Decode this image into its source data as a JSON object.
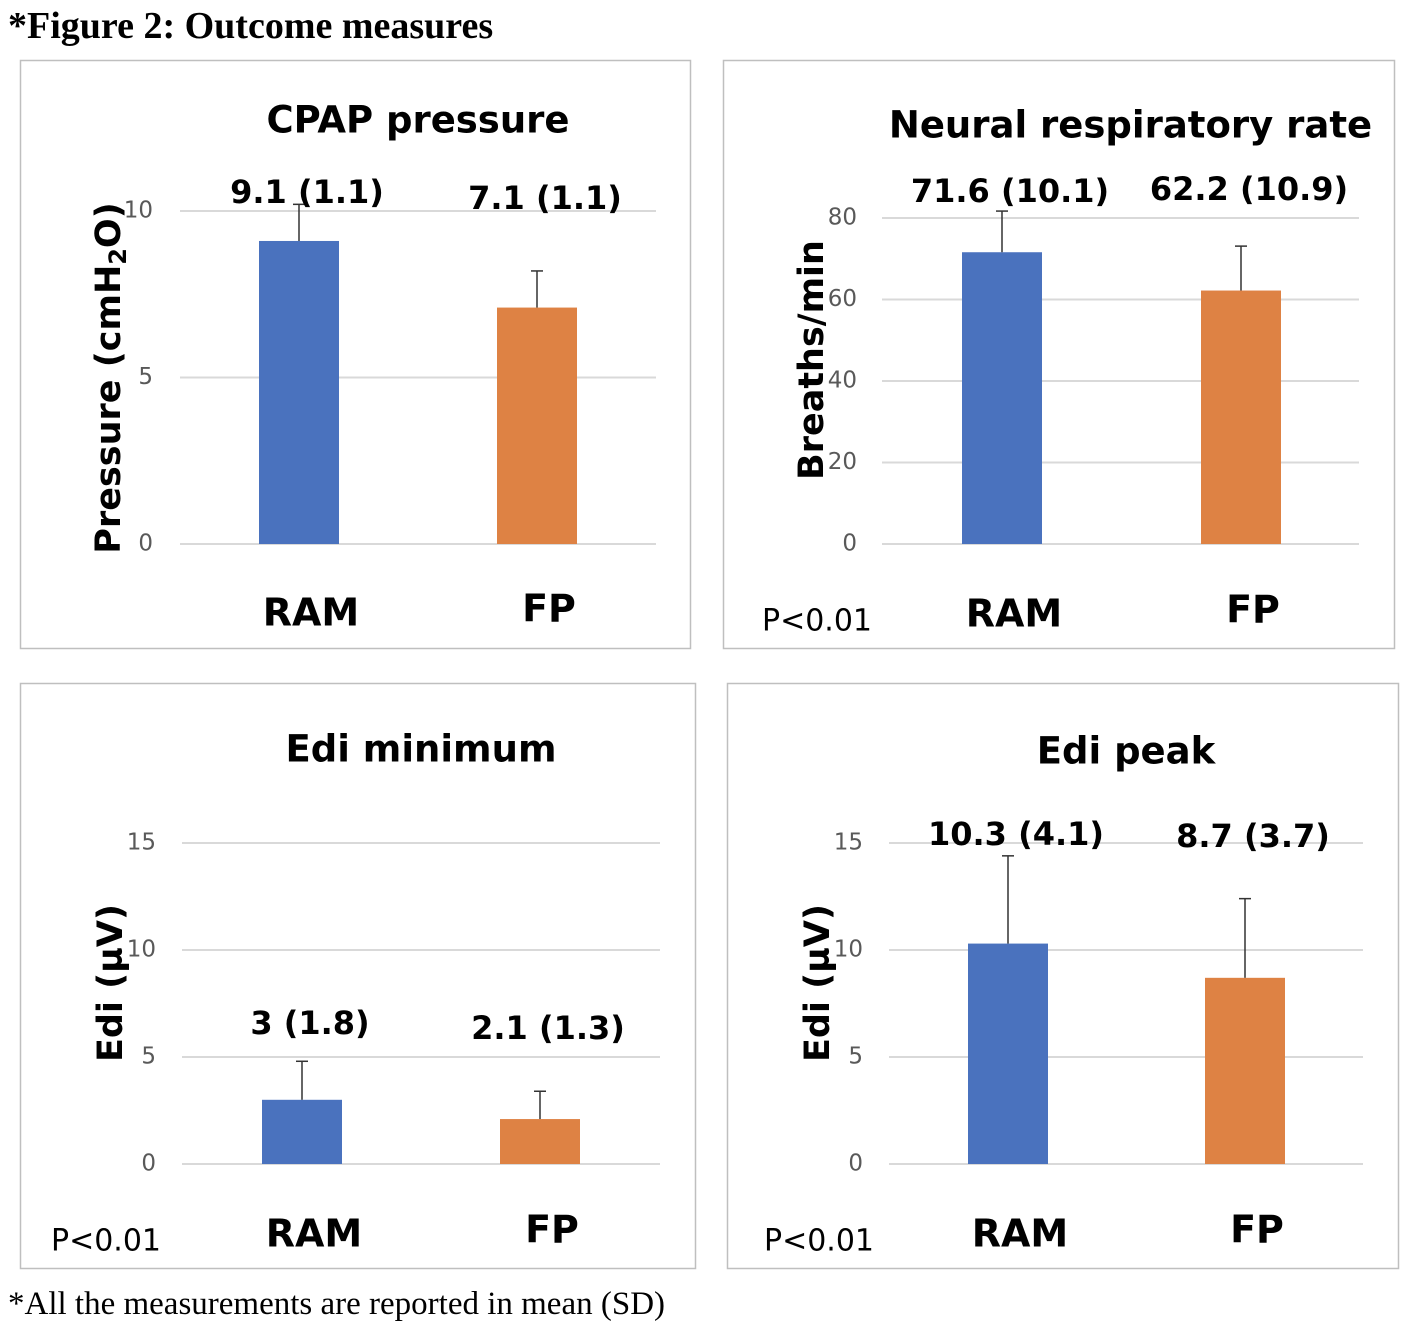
{
  "figure": {
    "title": "*Figure 2: Outcome measures",
    "footnote": "*All the measurements are reported in mean (SD)"
  },
  "colors": {
    "ram": "#4A72BE",
    "fp": "#DE8244",
    "grid": "#D9D9D9",
    "axis_text": "#595959",
    "border": "#BFBFBF"
  },
  "chart_data": [
    {
      "type": "bar",
      "title": "CPAP pressure",
      "ylabel": "Pressure (cmH2O)",
      "ylabel_parts": [
        "Pressure (cmH",
        "2",
        "O)"
      ],
      "categories": [
        "RAM",
        "FP"
      ],
      "values": [
        9.1,
        7.1
      ],
      "errors": [
        1.1,
        1.1
      ],
      "data_labels": [
        "9.1 (1.1)",
        "7.1 (1.1)"
      ],
      "ylim": [
        0,
        10
      ],
      "yticks": [
        0,
        5,
        10
      ],
      "pvalue": "",
      "grid": true
    },
    {
      "type": "bar",
      "title": "Neural respiratory rate",
      "ylabel": "Breaths/min",
      "categories": [
        "RAM",
        "FP"
      ],
      "values": [
        71.6,
        62.2
      ],
      "errors": [
        10.1,
        10.9
      ],
      "data_labels": [
        "71.6 (10.1)",
        "62.2 (10.9)"
      ],
      "ylim": [
        0,
        80
      ],
      "yticks": [
        0,
        20,
        40,
        60,
        80
      ],
      "pvalue": "P<0.01",
      "grid": true
    },
    {
      "type": "bar",
      "title": "Edi minimum",
      "ylabel": "Edi (µV)",
      "categories": [
        "RAM",
        "FP"
      ],
      "values": [
        3,
        2.1
      ],
      "errors": [
        1.8,
        1.3
      ],
      "data_labels": [
        "3 (1.8)",
        "2.1 (1.3)"
      ],
      "ylim": [
        0,
        15
      ],
      "yticks": [
        0,
        5,
        10,
        15
      ],
      "pvalue": "P<0.01",
      "grid": true
    },
    {
      "type": "bar",
      "title": "Edi peak",
      "ylabel": "Edi (µV)",
      "categories": [
        "RAM",
        "FP"
      ],
      "values": [
        10.3,
        8.7
      ],
      "errors": [
        4.1,
        3.7
      ],
      "data_labels": [
        "10.3 (4.1)",
        "8.7 (3.7)"
      ],
      "ylim": [
        0,
        15
      ],
      "yticks": [
        0,
        5,
        10,
        15
      ],
      "pvalue": "P<0.01",
      "grid": true
    }
  ]
}
